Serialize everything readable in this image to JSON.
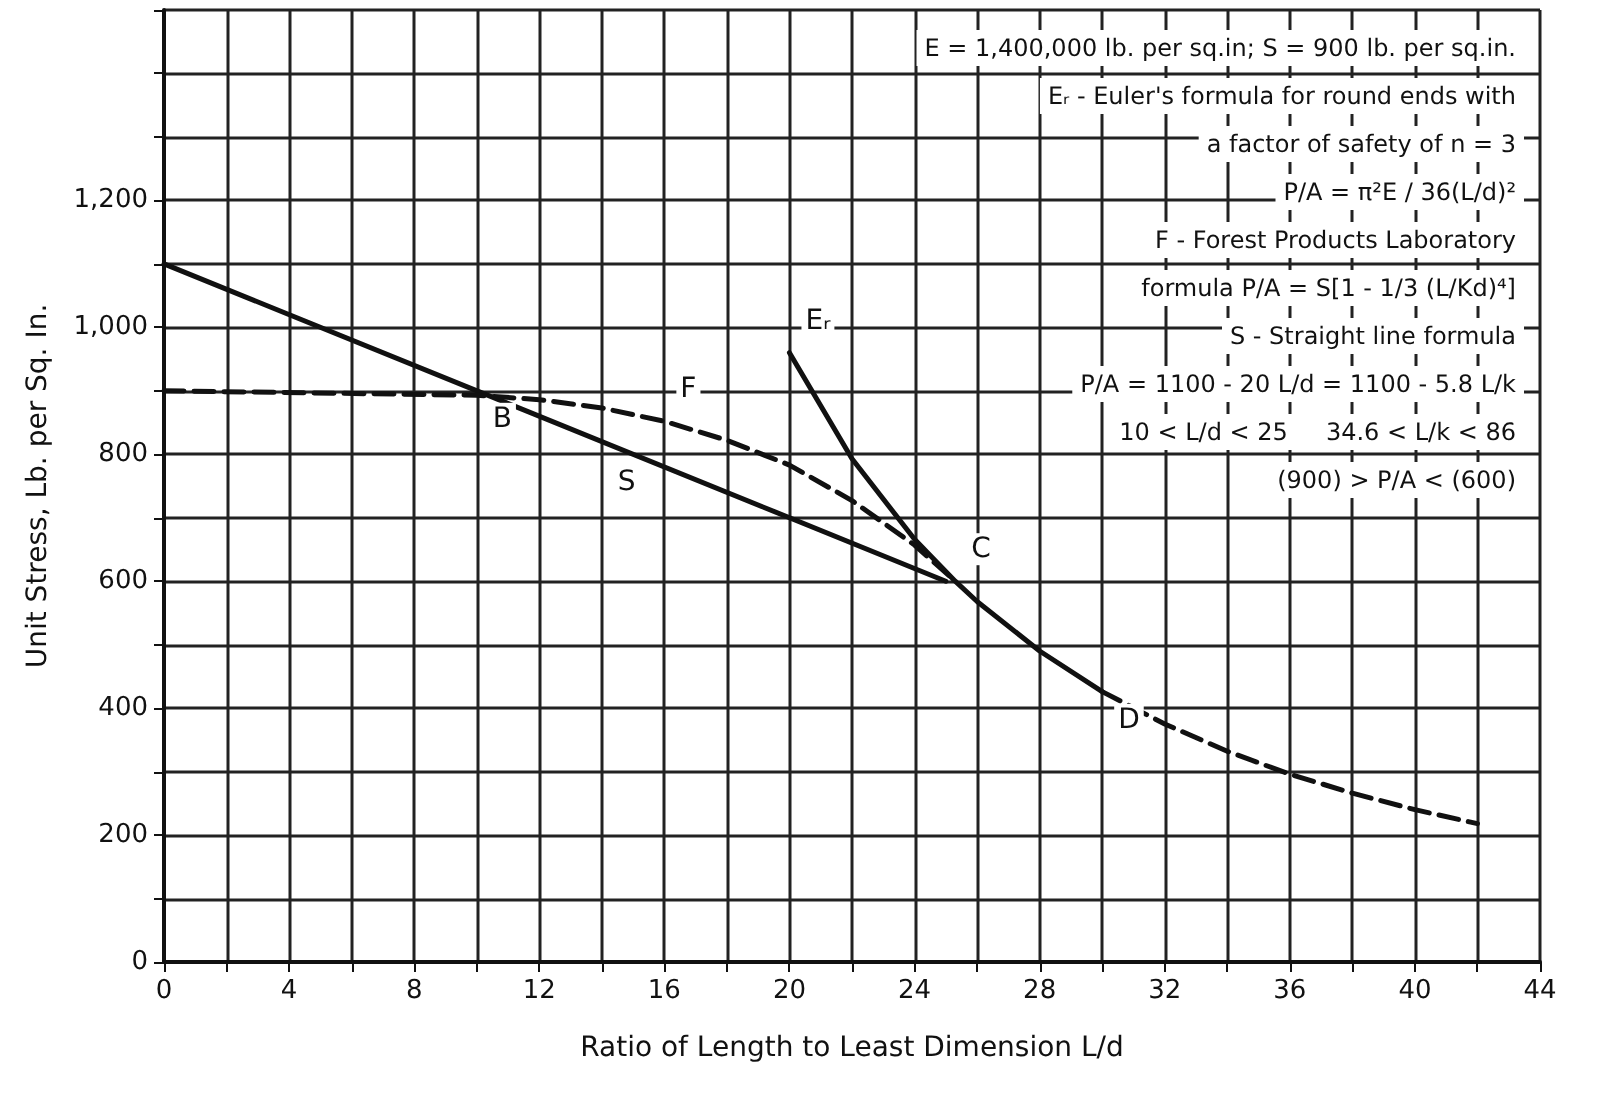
{
  "chart_data": {
    "type": "line",
    "xlabel": "Ratio of Length to Least Dimension L/d",
    "ylabel": "Unit Stress, Lb. per Sq. In.",
    "xlim": [
      0,
      44
    ],
    "xticks": [
      0,
      {
        "value": 2,
        "label": null
      },
      4,
      {
        "value": 6,
        "label": null
      },
      8,
      {
        "value": 10,
        "label": null
      },
      12,
      {
        "value": 14,
        "label": null
      },
      16,
      {
        "value": 18,
        "label": null
      },
      20,
      {
        "value": 22,
        "label": null
      },
      24,
      {
        "value": 26,
        "label": null
      },
      28,
      {
        "value": 30,
        "label": null
      },
      32,
      {
        "value": 34,
        "label": null
      },
      36,
      {
        "value": 38,
        "label": null
      },
      40,
      {
        "value": 42,
        "label": null
      },
      44
    ],
    "ylim": [
      0,
      1500
    ],
    "yticks": [
      0,
      {
        "value": 100,
        "label": null
      },
      200,
      {
        "value": 300,
        "label": null
      },
      400,
      {
        "value": 500,
        "label": null
      },
      600,
      {
        "value": 700,
        "label": null
      },
      800,
      {
        "value": 900,
        "label": null
      },
      {
        "value": 1000,
        "label": "1,000"
      },
      {
        "value": 1100,
        "label": null
      },
      {
        "value": 1200,
        "label": "1,200"
      },
      {
        "value": 1300,
        "label": null
      },
      {
        "value": 1400,
        "label": null
      },
      {
        "value": 1500,
        "label": null
      }
    ],
    "grid": true,
    "marker": "none",
    "series": [
      {
        "color": "#111111",
        "line_style": "solid",
        "x": [
          0,
          25
        ],
        "values": [
          1100,
          600
        ]
      },
      {
        "color": "#111111",
        "line_style": "dashed",
        "x": [
          0,
          10,
          12,
          14,
          16,
          18,
          20,
          22,
          24,
          25.3
        ],
        "values": [
          900,
          893,
          886,
          873,
          852,
          822,
          783,
          727,
          657,
          600
        ]
      },
      {
        "color": "#111111",
        "line_style": "solid",
        "x": [
          20,
          22,
          24,
          25.3,
          26,
          28,
          30
        ],
        "values": [
          960,
          793,
          666,
          600,
          568,
          490,
          426
        ]
      },
      {
        "color": "#111111",
        "line_style": "dashed",
        "x": [
          30,
          32,
          34,
          36,
          38,
          40,
          42
        ],
        "values": [
          426,
          375,
          332,
          296,
          266,
          240,
          218
        ]
      }
    ],
    "annotations": [
      "E = 1,400,000 lb. per sq.in; S = 900 lb. per sq.in.",
      "Eᵣ - Euler's formula for round ends with",
      "a factor of safety of n = 3",
      "P/A = π²E / 36(L/d)²",
      "F - Forest Products Laboratory",
      "formula P/A = S[1 - 1/3 (L/Kd)⁴]",
      "S - Straight line formula",
      "P/A = 1100 - 20 L/d = 1100 - 5.8 L/k",
      "10 < L/d < 25     34.6 < L/k < 86",
      "(900) > P/A < (600)",
      {
        "text": "B",
        "x": 10,
        "y": 900
      },
      {
        "text": "C",
        "x": 25.3,
        "y": 600
      },
      {
        "text": "D",
        "x": 30,
        "y": 426
      },
      {
        "text": "Eᵣ",
        "x": 20,
        "y": 960
      },
      {
        "text": "F",
        "x": 16,
        "y": 852
      },
      {
        "text": "S",
        "x": 14,
        "y": 800
      }
    ]
  }
}
